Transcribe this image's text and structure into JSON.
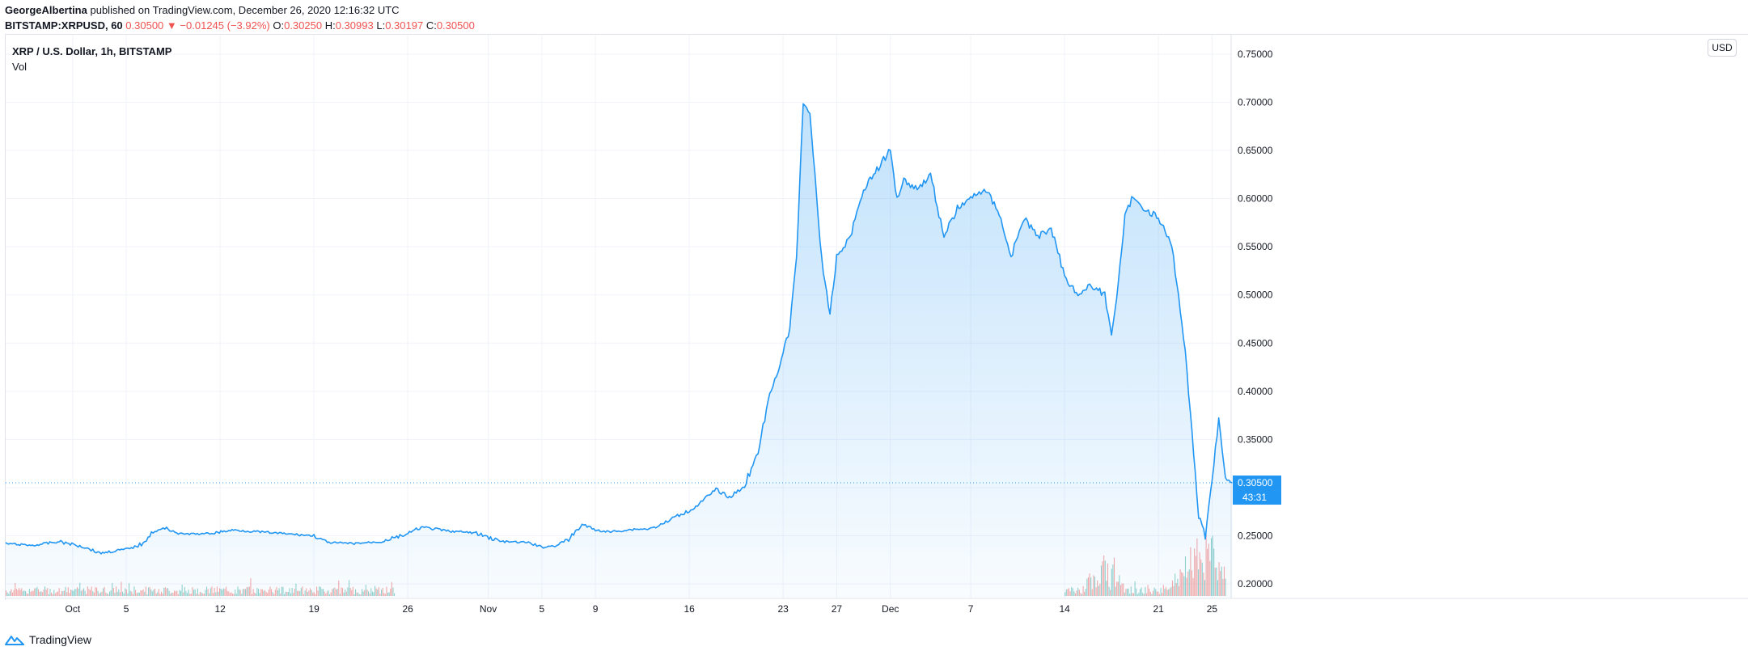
{
  "header": {
    "publisher": "GeorgeAlbertina",
    "published_text": "published on TradingView.com, December 26, 2020 12:16:32 UTC",
    "symbol_text": "BITSTAMP:XRPUSD, 60",
    "last_price": "0.30500",
    "change": "−0.01245 (−3.92%)",
    "open_label": "O:",
    "open": "0.30250",
    "high_label": "H:",
    "high": "0.30993",
    "low_label": "L:",
    "low": "0.30197",
    "close_label": "C:",
    "close": "0.30500",
    "change_color": "#ef5350"
  },
  "legend": {
    "series_name": "XRP / U.S. Dollar, 1h, BITSTAMP",
    "volume_label": "Vol"
  },
  "currency_badge": "USD",
  "footer": {
    "brand": "TradingView",
    "icon": "tradingview-logo-icon"
  },
  "chart_data": {
    "type": "area",
    "title": "XRP / U.S. Dollar, 1h, BITSTAMP",
    "xlabel": "",
    "ylabel": "",
    "currency": "USD",
    "ylim": [
      0.185,
      0.77
    ],
    "y_ticks": [
      0.2,
      0.25,
      0.3,
      0.35,
      0.4,
      0.45,
      0.5,
      0.55,
      0.6,
      0.65,
      0.7,
      0.75
    ],
    "y_tick_labels": [
      "0.20000",
      "0.25000",
      "0.30000",
      "0.35000",
      "0.40000",
      "0.45000",
      "0.50000",
      "0.55000",
      "0.60000",
      "0.65000",
      "0.70000",
      "0.75000"
    ],
    "x_domain": [
      "2020-09-26",
      "2020-12-26"
    ],
    "x_ticks": [
      {
        "date": "2020-10-01",
        "label": "Oct"
      },
      {
        "date": "2020-10-05",
        "label": "5"
      },
      {
        "date": "2020-10-12",
        "label": "12"
      },
      {
        "date": "2020-10-19",
        "label": "19"
      },
      {
        "date": "2020-10-26",
        "label": "26"
      },
      {
        "date": "2020-11-01",
        "label": "Nov"
      },
      {
        "date": "2020-11-05",
        "label": "5"
      },
      {
        "date": "2020-11-09",
        "label": "9"
      },
      {
        "date": "2020-11-16",
        "label": "16"
      },
      {
        "date": "2020-11-23",
        "label": "23"
      },
      {
        "date": "2020-11-27",
        "label": "27"
      },
      {
        "date": "2020-12-01",
        "label": "Dec"
      },
      {
        "date": "2020-12-07",
        "label": "7"
      },
      {
        "date": "2020-12-14",
        "label": "14"
      },
      {
        "date": "2020-12-21",
        "label": "21"
      },
      {
        "date": "2020-12-25",
        "label": "25"
      }
    ],
    "series": [
      {
        "price_points": [
          [
            "2020-09-26",
            0.242
          ],
          [
            "2020-09-28",
            0.24
          ],
          [
            "2020-09-30",
            0.244
          ],
          [
            "2020-10-02",
            0.238
          ],
          [
            "2020-10-03",
            0.232
          ],
          [
            "2020-10-05",
            0.236
          ],
          [
            "2020-10-06",
            0.24
          ],
          [
            "2020-10-07",
            0.254
          ],
          [
            "2020-10-08",
            0.258
          ],
          [
            "2020-10-09",
            0.252
          ],
          [
            "2020-10-11",
            0.252
          ],
          [
            "2020-10-13",
            0.256
          ],
          [
            "2020-10-15",
            0.254
          ],
          [
            "2020-10-17",
            0.252
          ],
          [
            "2020-10-19",
            0.25
          ],
          [
            "2020-10-20",
            0.243
          ],
          [
            "2020-10-22",
            0.242
          ],
          [
            "2020-10-24",
            0.244
          ],
          [
            "2020-10-26",
            0.252
          ],
          [
            "2020-10-27",
            0.259
          ],
          [
            "2020-10-29",
            0.255
          ],
          [
            "2020-10-31",
            0.253
          ],
          [
            "2020-11-02",
            0.244
          ],
          [
            "2020-11-04",
            0.243
          ],
          [
            "2020-11-05",
            0.238
          ],
          [
            "2020-11-06",
            0.24
          ],
          [
            "2020-11-07",
            0.246
          ],
          [
            "2020-11-08",
            0.262
          ],
          [
            "2020-11-09",
            0.256
          ],
          [
            "2020-11-10",
            0.254
          ],
          [
            "2020-11-12",
            0.257
          ],
          [
            "2020-11-13",
            0.257
          ],
          [
            "2020-11-14",
            0.262
          ],
          [
            "2020-11-15",
            0.27
          ],
          [
            "2020-11-16",
            0.276
          ],
          [
            "2020-11-17",
            0.286
          ],
          [
            "2020-11-18",
            0.298
          ],
          [
            "2020-11-19",
            0.29
          ],
          [
            "2020-11-20",
            0.3
          ],
          [
            "2020-11-21",
            0.33
          ],
          [
            "2020-11-22",
            0.395
          ],
          [
            "2020-11-23",
            0.44
          ],
          [
            "2020-11-23T12:00",
            0.465
          ],
          [
            "2020-11-24",
            0.54
          ],
          [
            "2020-11-24T12:00",
            0.7
          ],
          [
            "2020-11-25",
            0.69
          ],
          [
            "2020-11-25T12:00",
            0.6
          ],
          [
            "2020-11-26",
            0.52
          ],
          [
            "2020-11-26T12:00",
            0.48
          ],
          [
            "2020-11-27",
            0.54
          ],
          [
            "2020-11-28",
            0.56
          ],
          [
            "2020-11-29",
            0.61
          ],
          [
            "2020-11-30",
            0.63
          ],
          [
            "2020-12-01",
            0.65
          ],
          [
            "2020-12-01T12:00",
            0.6
          ],
          [
            "2020-12-02",
            0.62
          ],
          [
            "2020-12-03",
            0.61
          ],
          [
            "2020-12-04",
            0.625
          ],
          [
            "2020-12-05",
            0.56
          ],
          [
            "2020-12-06",
            0.59
          ],
          [
            "2020-12-07",
            0.6
          ],
          [
            "2020-12-08",
            0.61
          ],
          [
            "2020-12-09",
            0.59
          ],
          [
            "2020-12-10",
            0.54
          ],
          [
            "2020-12-11",
            0.58
          ],
          [
            "2020-12-12",
            0.56
          ],
          [
            "2020-12-13",
            0.57
          ],
          [
            "2020-12-14",
            0.52
          ],
          [
            "2020-12-15",
            0.5
          ],
          [
            "2020-12-16",
            0.51
          ],
          [
            "2020-12-17",
            0.5
          ],
          [
            "2020-12-17T12:00",
            0.46
          ],
          [
            "2020-12-18",
            0.51
          ],
          [
            "2020-12-18T12:00",
            0.58
          ],
          [
            "2020-12-19",
            0.6
          ],
          [
            "2020-12-20",
            0.59
          ],
          [
            "2020-12-21",
            0.58
          ],
          [
            "2020-12-22",
            0.55
          ],
          [
            "2020-12-22T12:00",
            0.5
          ],
          [
            "2020-12-23",
            0.44
          ],
          [
            "2020-12-23T12:00",
            0.36
          ],
          [
            "2020-12-24",
            0.27
          ],
          [
            "2020-12-24T12:00",
            0.25
          ],
          [
            "2020-12-25",
            0.31
          ],
          [
            "2020-12-25T12:00",
            0.37
          ],
          [
            "2020-12-26",
            0.31
          ],
          [
            "2020-12-26T12:00",
            0.305
          ]
        ],
        "last_value": 0.305,
        "last_value_label": "0.30500",
        "countdown_label": "43:31",
        "line_color": "#2196f3",
        "fill_color": "#2196f3"
      }
    ],
    "volume": {
      "up_color": "#26a69a",
      "down_color": "#ef5350",
      "visible_ranges": [
        [
          "2020-09-26",
          "2020-10-25"
        ],
        [
          "2020-12-14",
          "2020-12-26"
        ]
      ],
      "peak_dates": [
        [
          "2020-12-17",
          0.8
        ],
        [
          "2020-12-23",
          0.5
        ],
        [
          "2020-12-24",
          1.0
        ],
        [
          "2020-12-25",
          0.9
        ]
      ]
    },
    "grid": true,
    "price_line_dotted": true
  }
}
